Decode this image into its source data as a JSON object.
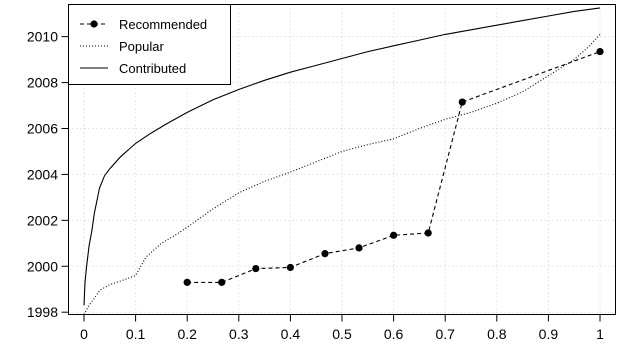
{
  "chart_data": {
    "type": "line",
    "title": "",
    "xlabel": "",
    "ylabel": "",
    "xlim": [
      -0.03,
      1.03
    ],
    "ylim": [
      1997.9,
      2011.4
    ],
    "x_ticks": [
      0,
      0.1,
      0.2,
      0.3,
      0.4,
      0.5,
      0.6,
      0.7,
      0.8,
      0.9,
      1
    ],
    "x_tick_labels": [
      "0",
      "0.1",
      "0.2",
      "0.3",
      "0.4",
      "0.5",
      "0.6",
      "0.7",
      "0.8",
      "0.9",
      "1"
    ],
    "y_ticks": [
      1998,
      2000,
      2002,
      2004,
      2006,
      2008,
      2010
    ],
    "y_tick_labels": [
      "1998",
      "2000",
      "2002",
      "2004",
      "2006",
      "2008",
      "2010"
    ],
    "grid": true,
    "legend_position": "top-left",
    "series": [
      {
        "name": "Recommended",
        "style": "dashed-with-points",
        "color": "#000000",
        "x": [
          0.2,
          0.267,
          0.333,
          0.4,
          0.467,
          0.533,
          0.6,
          0.667,
          0.733,
          1.0
        ],
        "y": [
          1999.3,
          1999.3,
          1999.9,
          1999.95,
          2000.55,
          2000.8,
          2001.35,
          2001.45,
          2007.15,
          2009.35
        ]
      },
      {
        "name": "Popular",
        "style": "dotted",
        "color": "#000000",
        "x": [
          0,
          0.01,
          0.02,
          0.03,
          0.05,
          0.07,
          0.1,
          0.12,
          0.15,
          0.18,
          0.2,
          0.25,
          0.3,
          0.35,
          0.4,
          0.45,
          0.5,
          0.55,
          0.6,
          0.65,
          0.7,
          0.75,
          0.8,
          0.85,
          0.9,
          0.95,
          0.98,
          1.0
        ],
        "y": [
          1997.9,
          1998.3,
          1998.6,
          1998.95,
          1999.2,
          1999.35,
          1999.6,
          2000.4,
          2001.0,
          2001.4,
          2001.7,
          2002.5,
          2003.2,
          2003.7,
          2004.1,
          2004.55,
          2005.0,
          2005.3,
          2005.55,
          2006.0,
          2006.4,
          2006.7,
          2007.1,
          2007.6,
          2008.3,
          2009.0,
          2009.6,
          2010.1
        ]
      },
      {
        "name": "Contributed",
        "style": "solid",
        "color": "#000000",
        "x": [
          0,
          0.002,
          0.005,
          0.01,
          0.015,
          0.02,
          0.03,
          0.04,
          0.05,
          0.07,
          0.1,
          0.13,
          0.16,
          0.2,
          0.25,
          0.3,
          0.35,
          0.4,
          0.45,
          0.5,
          0.55,
          0.6,
          0.65,
          0.7,
          0.75,
          0.8,
          0.85,
          0.9,
          0.95,
          1.0
        ],
        "y": [
          1998.3,
          1999.3,
          2000.0,
          2000.9,
          2001.5,
          2002.3,
          2003.4,
          2003.95,
          2004.25,
          2004.75,
          2005.35,
          2005.8,
          2006.2,
          2006.7,
          2007.25,
          2007.7,
          2008.1,
          2008.45,
          2008.75,
          2009.05,
          2009.35,
          2009.6,
          2009.85,
          2010.1,
          2010.3,
          2010.5,
          2010.7,
          2010.9,
          2011.1,
          2011.25
        ]
      }
    ]
  }
}
